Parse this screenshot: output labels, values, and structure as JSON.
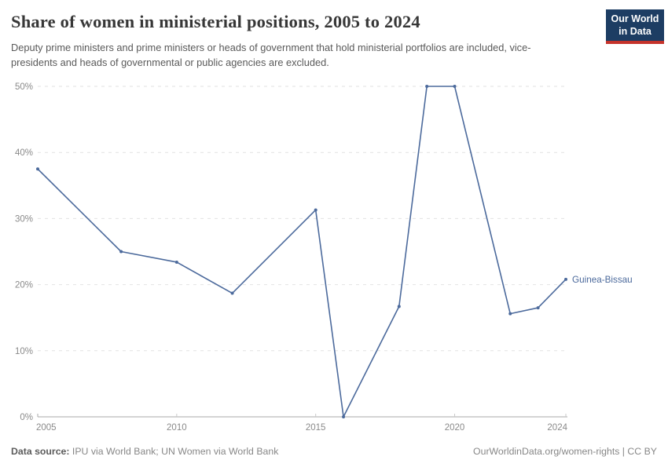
{
  "header": {
    "title": "Share of women in ministerial positions, 2005 to 2024",
    "subtitle": "Deputy prime ministers and prime ministers or heads of government that hold ministerial portfolios are included, vice-presidents and heads of governmental or public agencies are excluded.",
    "logo": {
      "line1": "Our World",
      "line2": "in Data",
      "bg_color": "#1d3d63",
      "accent_color": "#c5332b"
    }
  },
  "chart_data": {
    "type": "line",
    "title": "Share of women in ministerial positions, 2005 to 2024",
    "xlabel": "",
    "ylabel": "",
    "xlim": [
      2005,
      2024
    ],
    "ylim": [
      0,
      50
    ],
    "grid": "horizontal-dashed",
    "legend_position": "end-of-line-label",
    "x_ticks": [
      2005,
      2010,
      2015,
      2020,
      2024
    ],
    "y_tick_values": [
      0,
      10,
      20,
      30,
      40,
      50
    ],
    "y_tick_labels": [
      "0%",
      "10%",
      "20%",
      "30%",
      "40%",
      "50%"
    ],
    "series": [
      {
        "name": "Guinea-Bissau",
        "color": "#4C6A9C",
        "x": [
          2005,
          2008,
          2010,
          2012,
          2015,
          2016,
          2018,
          2019,
          2020,
          2022,
          2023,
          2024
        ],
        "values": [
          37.5,
          25.0,
          23.4,
          18.7,
          31.3,
          0.0,
          16.7,
          50.0,
          50.0,
          15.6,
          16.5,
          20.8
        ]
      }
    ]
  },
  "footer": {
    "datasource_label": "Data source:",
    "datasource_value": " IPU via World Bank; UN Women via World Bank",
    "credit": "OurWorldinData.org/women-rights | CC BY"
  },
  "colors": {
    "line": "#4C6A9C",
    "title_text": "#373737",
    "subtitle_text": "#595959",
    "axis_text": "#8a8a8a",
    "gridline": "#e2e2e2",
    "axis_line": "#a8a8a8",
    "tick": "#c9c9c9"
  }
}
